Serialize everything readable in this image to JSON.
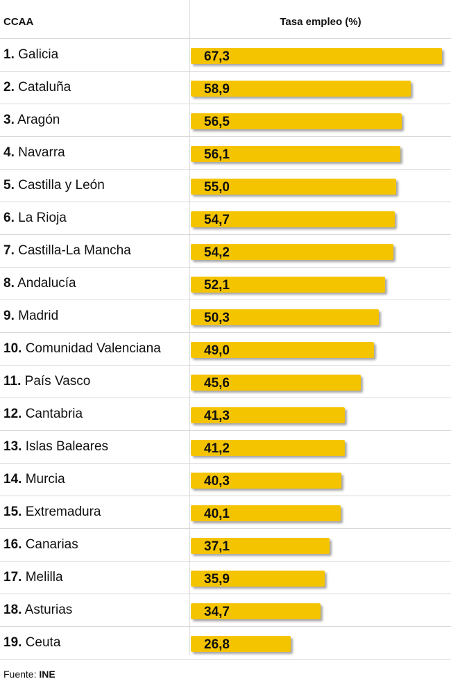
{
  "header": {
    "col_region": "CCAA",
    "col_value": "Tasa empleo (%)"
  },
  "accent_color": "#f5c400",
  "chart_data": {
    "type": "bar",
    "orientation": "horizontal",
    "title": "",
    "xlabel": "",
    "ylabel": "",
    "value_label": "Tasa empleo (%)",
    "xlim": [
      0,
      67.3
    ],
    "categories": [
      "Galicia",
      "Cataluña",
      "Aragón",
      "Navarra",
      "Castilla y León",
      "La Rioja",
      "Castilla-La Mancha",
      "Andalucía",
      "Madrid",
      "Comunidad Valenciana",
      "País Vasco",
      "Cantabria",
      "Islas Baleares",
      "Murcia",
      "Extremadura",
      "Canarias",
      "Melilla",
      "Asturias",
      "Ceuta"
    ],
    "values": [
      67.3,
      58.9,
      56.5,
      56.1,
      55.0,
      54.7,
      54.2,
      52.1,
      50.3,
      49.0,
      45.6,
      41.3,
      41.2,
      40.3,
      40.1,
      37.1,
      35.9,
      34.7,
      26.8
    ]
  },
  "rows": [
    {
      "rank": "1.",
      "name": "Galicia",
      "value_text": "67,3"
    },
    {
      "rank": "2.",
      "name": "Cataluña",
      "value_text": "58,9"
    },
    {
      "rank": "3.",
      "name": "Aragón",
      "value_text": "56,5"
    },
    {
      "rank": "4.",
      "name": "Navarra",
      "value_text": "56,1"
    },
    {
      "rank": "5.",
      "name": "Castilla y León",
      "value_text": "55,0"
    },
    {
      "rank": "6.",
      "name": "La Rioja",
      "value_text": "54,7"
    },
    {
      "rank": "7.",
      "name": "Castilla-La Mancha",
      "value_text": "54,2"
    },
    {
      "rank": "8.",
      "name": "Andalucía",
      "value_text": "52,1"
    },
    {
      "rank": "9.",
      "name": "Madrid",
      "value_text": "50,3"
    },
    {
      "rank": "10.",
      "name": "Comunidad Valenciana",
      "value_text": "49,0"
    },
    {
      "rank": "11.",
      "name": "País Vasco",
      "value_text": "45,6"
    },
    {
      "rank": "12.",
      "name": "Cantabria",
      "value_text": "41,3"
    },
    {
      "rank": "13.",
      "name": "Islas Baleares",
      "value_text": "41,2"
    },
    {
      "rank": "14.",
      "name": "Murcia",
      "value_text": "40,3"
    },
    {
      "rank": "15.",
      "name": "Extremadura",
      "value_text": "40,1"
    },
    {
      "rank": "16.",
      "name": "Canarias",
      "value_text": "37,1"
    },
    {
      "rank": "17.",
      "name": "Melilla",
      "value_text": "35,9"
    },
    {
      "rank": "18.",
      "name": "Asturias",
      "value_text": "34,7"
    },
    {
      "rank": "19.",
      "name": "Ceuta",
      "value_text": "26,8"
    }
  ],
  "source": {
    "label": "Fuente: ",
    "name": "INE"
  }
}
